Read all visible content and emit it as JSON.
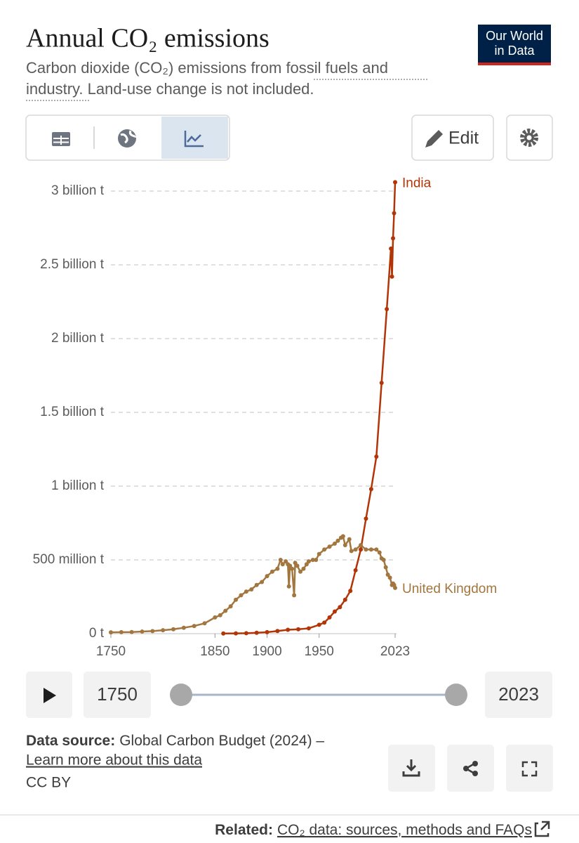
{
  "ui": {
    "title": "Annual CO₂ emissions",
    "logo": [
      "Our World",
      "in Data"
    ],
    "subtitle": [
      "Carbon dioxide (CO₂) emissions from ",
      "fossil fuels and",
      "industry",
      ". Land-use change is not included."
    ],
    "edit": "Edit",
    "timeline": {
      "start": 1750,
      "end": 2023
    },
    "source_label": "Data source:",
    "source": "Global Carbon Budget (2024) –",
    "learn_more": "Learn more about this data",
    "license": "CC BY",
    "related_label": "Related:",
    "related": "CO₂ data: sources, methods and FAQs"
  },
  "chart_data": {
    "type": "line",
    "xlim": [
      1750,
      2023
    ],
    "xticks": [
      1750,
      1850,
      1900,
      1950,
      2023
    ],
    "ylim": [
      0,
      3000000000
    ],
    "yticks": [
      {
        "value": 0,
        "label": "0 t"
      },
      {
        "value": 500000000,
        "label": "500 million t"
      },
      {
        "value": 1000000000,
        "label": "1 billion t"
      },
      {
        "value": 1500000000,
        "label": "1.5 billion t"
      },
      {
        "value": 2000000000,
        "label": "2 billion t"
      },
      {
        "value": 2500000000,
        "label": "2.5 billion t"
      },
      {
        "value": 3000000000,
        "label": "3 billion t"
      }
    ],
    "grid": true,
    "series": [
      {
        "name": "India",
        "color": "#b13507",
        "x": [
          1858,
          1870,
          1880,
          1890,
          1900,
          1910,
          1920,
          1930,
          1940,
          1950,
          1955,
          1960,
          1965,
          1970,
          1975,
          1980,
          1985,
          1990,
          1995,
          2000,
          2005,
          2010,
          2015,
          2019,
          2020,
          2021,
          2022,
          2023
        ],
        "values": [
          1000000,
          2000000,
          3000000,
          6000000,
          10000000,
          18000000,
          26000000,
          30000000,
          36000000,
          60000000,
          75000000,
          110000000,
          150000000,
          180000000,
          230000000,
          290000000,
          430000000,
          570000000,
          780000000,
          980000000,
          1200000000,
          1700000000,
          2200000000,
          2610000000,
          2420000000,
          2680000000,
          2850000000,
          3060000000
        ]
      },
      {
        "name": "United Kingdom",
        "color": "#a2763f",
        "x": [
          1750,
          1760,
          1770,
          1780,
          1790,
          1800,
          1810,
          1820,
          1830,
          1840,
          1850,
          1855,
          1860,
          1865,
          1870,
          1875,
          1880,
          1885,
          1890,
          1895,
          1900,
          1905,
          1910,
          1913,
          1915,
          1918,
          1920,
          1921,
          1922,
          1924,
          1926,
          1927,
          1929,
          1932,
          1935,
          1938,
          1940,
          1944,
          1947,
          1950,
          1955,
          1960,
          1965,
          1968,
          1971,
          1973,
          1975,
          1979,
          1981,
          1985,
          1990,
          1995,
          2000,
          2005,
          2008,
          2010,
          2012,
          2014,
          2016,
          2018,
          2020,
          2021,
          2022,
          2023
        ],
        "values": [
          9000000,
          10000000,
          11000000,
          14000000,
          17000000,
          23000000,
          30000000,
          40000000,
          52000000,
          70000000,
          110000000,
          125000000,
          155000000,
          185000000,
          230000000,
          260000000,
          285000000,
          300000000,
          330000000,
          350000000,
          390000000,
          420000000,
          440000000,
          500000000,
          470000000,
          490000000,
          470000000,
          320000000,
          460000000,
          440000000,
          260000000,
          480000000,
          460000000,
          420000000,
          440000000,
          470000000,
          490000000,
          500000000,
          500000000,
          540000000,
          570000000,
          590000000,
          610000000,
          630000000,
          650000000,
          660000000,
          600000000,
          640000000,
          560000000,
          570000000,
          600000000,
          570000000,
          570000000,
          570000000,
          550000000,
          510000000,
          500000000,
          450000000,
          400000000,
          380000000,
          330000000,
          340000000,
          330000000,
          310000000
        ]
      }
    ]
  }
}
